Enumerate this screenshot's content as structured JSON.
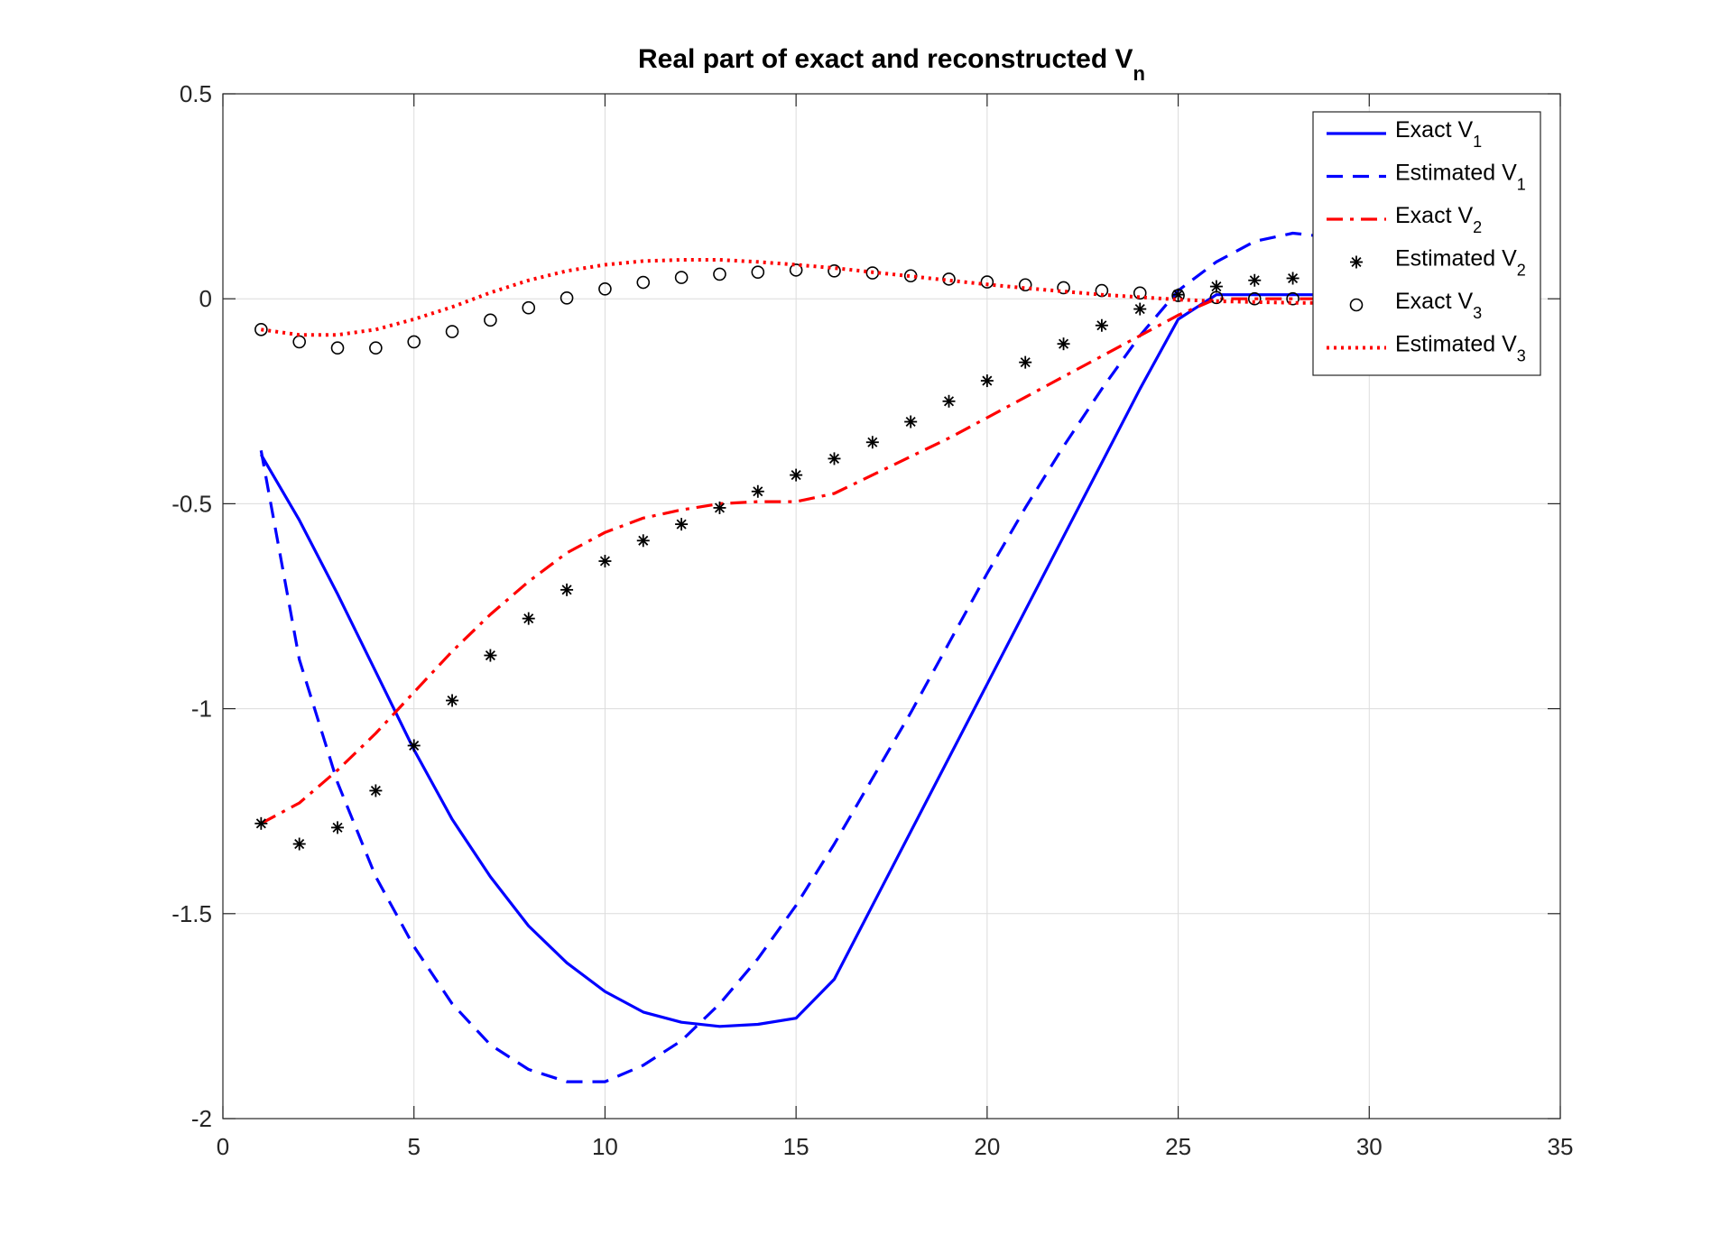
{
  "chart_data": {
    "type": "line",
    "title": "Real part of exact and reconstructed V",
    "title_subscript": "n",
    "xlabel": "",
    "ylabel": "",
    "xlim": [
      0,
      35
    ],
    "ylim": [
      -2,
      0.5
    ],
    "xticks": [
      0,
      5,
      10,
      15,
      20,
      25,
      30,
      35
    ],
    "xtick_labels": [
      "0",
      "5",
      "10",
      "15",
      "20",
      "25",
      "30",
      "35"
    ],
    "yticks": [
      -2,
      -1.5,
      -1,
      -0.5,
      0,
      0.5
    ],
    "ytick_labels": [
      "-2",
      "-1.5",
      "-1",
      "-0.5",
      "0",
      "0.5"
    ],
    "grid": true,
    "legend_position": "top-right",
    "series": [
      {
        "name": "Exact V",
        "name_subscript": "1",
        "color": "#0000ff",
        "style": "solid",
        "x": [
          1,
          2,
          3,
          4,
          5,
          6,
          7,
          8,
          9,
          10,
          11,
          12,
          13,
          14,
          15,
          16,
          17,
          18,
          19,
          20,
          21,
          22,
          23,
          24,
          25,
          26,
          27,
          28,
          29
        ],
        "y": [
          -0.38,
          -0.54,
          -0.72,
          -0.91,
          -1.1,
          -1.27,
          -1.41,
          -1.53,
          -1.62,
          -1.69,
          -1.74,
          -1.765,
          -1.775,
          -1.77,
          -1.755,
          -1.66,
          -1.48,
          -1.3,
          -1.12,
          -0.94,
          -0.76,
          -0.58,
          -0.4,
          -0.22,
          -0.05,
          0.01,
          0.01,
          0.01,
          0.01
        ]
      },
      {
        "name": "Estimated V",
        "name_subscript": "1",
        "color": "#0000ff",
        "style": "dashed",
        "x": [
          1,
          2,
          3,
          4,
          5,
          6,
          7,
          8,
          9,
          10,
          11,
          12,
          13,
          14,
          15,
          16,
          17,
          18,
          19,
          20,
          21,
          22,
          23,
          24,
          25,
          26,
          27,
          28,
          29
        ],
        "y": [
          -0.37,
          -0.88,
          -1.18,
          -1.41,
          -1.58,
          -1.72,
          -1.82,
          -1.88,
          -1.91,
          -1.91,
          -1.87,
          -1.81,
          -1.72,
          -1.61,
          -1.48,
          -1.33,
          -1.17,
          -1.01,
          -0.84,
          -0.67,
          -0.51,
          -0.36,
          -0.22,
          -0.09,
          0.02,
          0.09,
          0.14,
          0.16,
          0.15
        ]
      },
      {
        "name": "Exact V",
        "name_subscript": "2",
        "color": "#ff0000",
        "style": "dashdot",
        "x": [
          1,
          2,
          3,
          4,
          5,
          6,
          7,
          8,
          9,
          10,
          11,
          12,
          13,
          14,
          15,
          16,
          17,
          18,
          19,
          20,
          21,
          22,
          23,
          24,
          25,
          26,
          27,
          28,
          29
        ],
        "y": [
          -1.28,
          -1.23,
          -1.15,
          -1.06,
          -0.96,
          -0.86,
          -0.77,
          -0.69,
          -0.62,
          -0.57,
          -0.535,
          -0.515,
          -0.5,
          -0.495,
          -0.495,
          -0.475,
          -0.43,
          -0.385,
          -0.34,
          -0.29,
          -0.24,
          -0.19,
          -0.14,
          -0.09,
          -0.04,
          0.0,
          0.0,
          0.0,
          0.0
        ]
      },
      {
        "name": "Estimated V",
        "name_subscript": "2",
        "color": "#000000",
        "style": "markers-asterisk",
        "x": [
          1,
          2,
          3,
          4,
          5,
          6,
          7,
          8,
          9,
          10,
          11,
          12,
          13,
          14,
          15,
          16,
          17,
          18,
          19,
          20,
          21,
          22,
          23,
          24,
          25,
          26,
          27,
          28
        ],
        "y": [
          -1.28,
          -1.33,
          -1.29,
          -1.2,
          -1.09,
          -0.98,
          -0.87,
          -0.78,
          -0.71,
          -0.64,
          -0.59,
          -0.55,
          -0.51,
          -0.47,
          -0.43,
          -0.39,
          -0.35,
          -0.3,
          -0.25,
          -0.2,
          -0.155,
          -0.11,
          -0.065,
          -0.025,
          0.01,
          0.03,
          0.045,
          0.05
        ]
      },
      {
        "name": "Exact V",
        "name_subscript": "3",
        "color": "#000000",
        "style": "markers-circle",
        "x": [
          1,
          2,
          3,
          4,
          5,
          6,
          7,
          8,
          9,
          10,
          11,
          12,
          13,
          14,
          15,
          16,
          17,
          18,
          19,
          20,
          21,
          22,
          23,
          24,
          25,
          26,
          27,
          28
        ],
        "y": [
          -0.075,
          -0.105,
          -0.12,
          -0.12,
          -0.105,
          -0.08,
          -0.052,
          -0.022,
          0.002,
          0.024,
          0.04,
          0.052,
          0.06,
          0.065,
          0.07,
          0.068,
          0.063,
          0.056,
          0.048,
          0.041,
          0.034,
          0.027,
          0.02,
          0.014,
          0.008,
          0.003,
          0.0,
          0.0
        ]
      },
      {
        "name": "Estimated V",
        "name_subscript": "3",
        "color": "#ff0000",
        "style": "dotted",
        "x": [
          1,
          2,
          3,
          4,
          5,
          6,
          7,
          8,
          9,
          10,
          11,
          12,
          13,
          14,
          15,
          16,
          17,
          18,
          19,
          20,
          21,
          22,
          23,
          24,
          25,
          26,
          27,
          28,
          29
        ],
        "y": [
          -0.075,
          -0.088,
          -0.088,
          -0.075,
          -0.05,
          -0.02,
          0.015,
          0.045,
          0.068,
          0.083,
          0.092,
          0.095,
          0.095,
          0.09,
          0.083,
          0.075,
          0.065,
          0.055,
          0.045,
          0.035,
          0.026,
          0.018,
          0.01,
          0.004,
          -0.002,
          -0.006,
          -0.008,
          -0.01,
          -0.01
        ]
      }
    ]
  }
}
